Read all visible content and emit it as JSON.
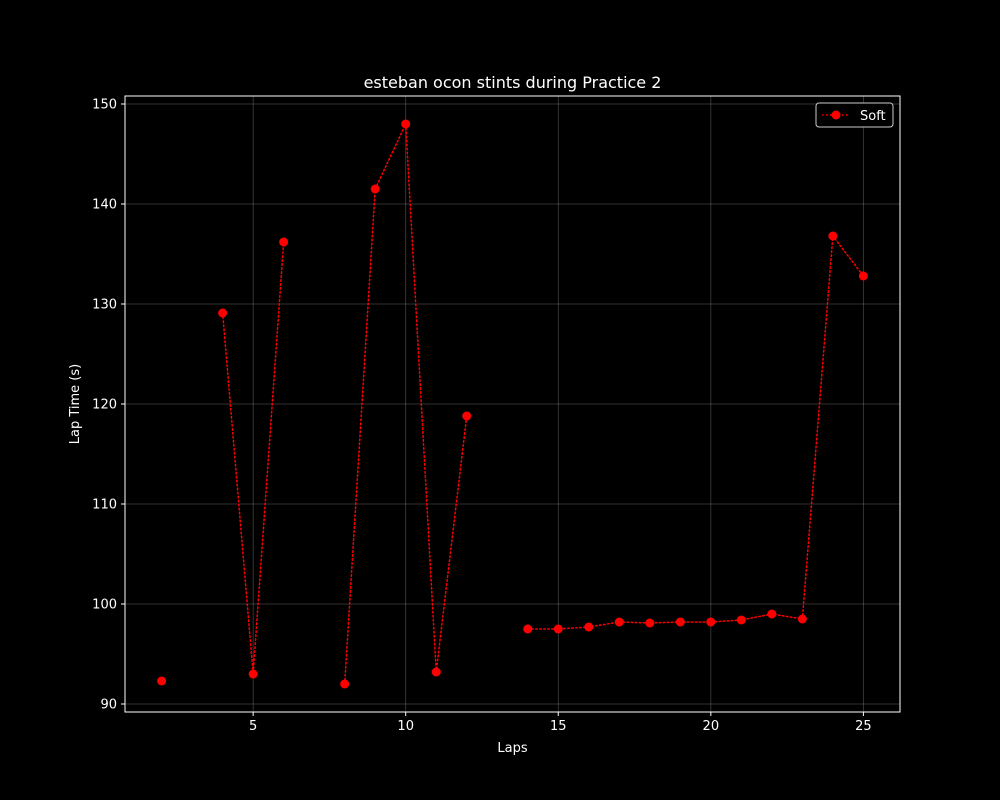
{
  "chart_data": {
    "type": "line",
    "title": "esteban ocon stints during Practice 2",
    "xlabel": "Laps",
    "ylabel": "Lap Time (s)",
    "xlim": [
      0.8,
      26.2
    ],
    "ylim": [
      89.2,
      150.8
    ],
    "xticks": [
      5,
      10,
      15,
      20,
      25
    ],
    "yticks": [
      90,
      100,
      110,
      120,
      130,
      140,
      150
    ],
    "grid": true,
    "legend": "top-right",
    "colors": {
      "background": "#000000",
      "foreground": "#ffffff",
      "series": "#ff0000"
    },
    "series": [
      {
        "name": "Soft",
        "marker": "circle",
        "line_style": "dotted",
        "points": [
          {
            "x": 2,
            "y": 92.3
          },
          {
            "x": 3,
            "y": null
          },
          {
            "x": 4,
            "y": 129.1
          },
          {
            "x": 5,
            "y": 93.0
          },
          {
            "x": 6,
            "y": 136.2
          },
          {
            "x": 7,
            "y": null
          },
          {
            "x": 8,
            "y": 92.0
          },
          {
            "x": 9,
            "y": 141.5
          },
          {
            "x": 10,
            "y": 148.0
          },
          {
            "x": 11,
            "y": 93.2
          },
          {
            "x": 12,
            "y": 118.8
          },
          {
            "x": 13,
            "y": null
          },
          {
            "x": 14,
            "y": 97.5
          },
          {
            "x": 15,
            "y": 97.5
          },
          {
            "x": 16,
            "y": 97.7
          },
          {
            "x": 17,
            "y": 98.2
          },
          {
            "x": 18,
            "y": 98.1
          },
          {
            "x": 19,
            "y": 98.2
          },
          {
            "x": 20,
            "y": 98.2
          },
          {
            "x": 21,
            "y": 98.4
          },
          {
            "x": 22,
            "y": 99.0
          },
          {
            "x": 23,
            "y": 98.5
          },
          {
            "x": 24,
            "y": 136.8
          },
          {
            "x": 25,
            "y": 132.8
          }
        ]
      }
    ]
  }
}
